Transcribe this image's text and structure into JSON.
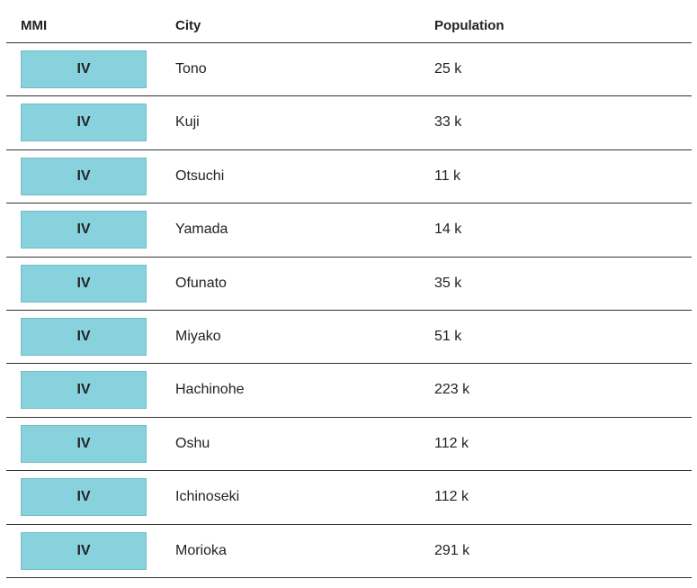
{
  "table": {
    "headers": [
      "MMI",
      "City",
      "Population"
    ],
    "rows": [
      [
        "IV",
        "Tono",
        "25 k"
      ],
      [
        "IV",
        "Kuji",
        "33 k"
      ],
      [
        "IV",
        "Otsuchi",
        "11 k"
      ],
      [
        "IV",
        "Yamada",
        "14 k"
      ],
      [
        "IV",
        "Ofunato",
        "35 k"
      ],
      [
        "IV",
        "Miyako",
        "51 k"
      ],
      [
        "IV",
        "Hachinohe",
        "223 k"
      ],
      [
        "IV",
        "Oshu",
        "112 k"
      ],
      [
        "IV",
        "Ichinoseki",
        "112 k"
      ],
      [
        "IV",
        "Morioka",
        "291 k"
      ]
    ]
  }
}
